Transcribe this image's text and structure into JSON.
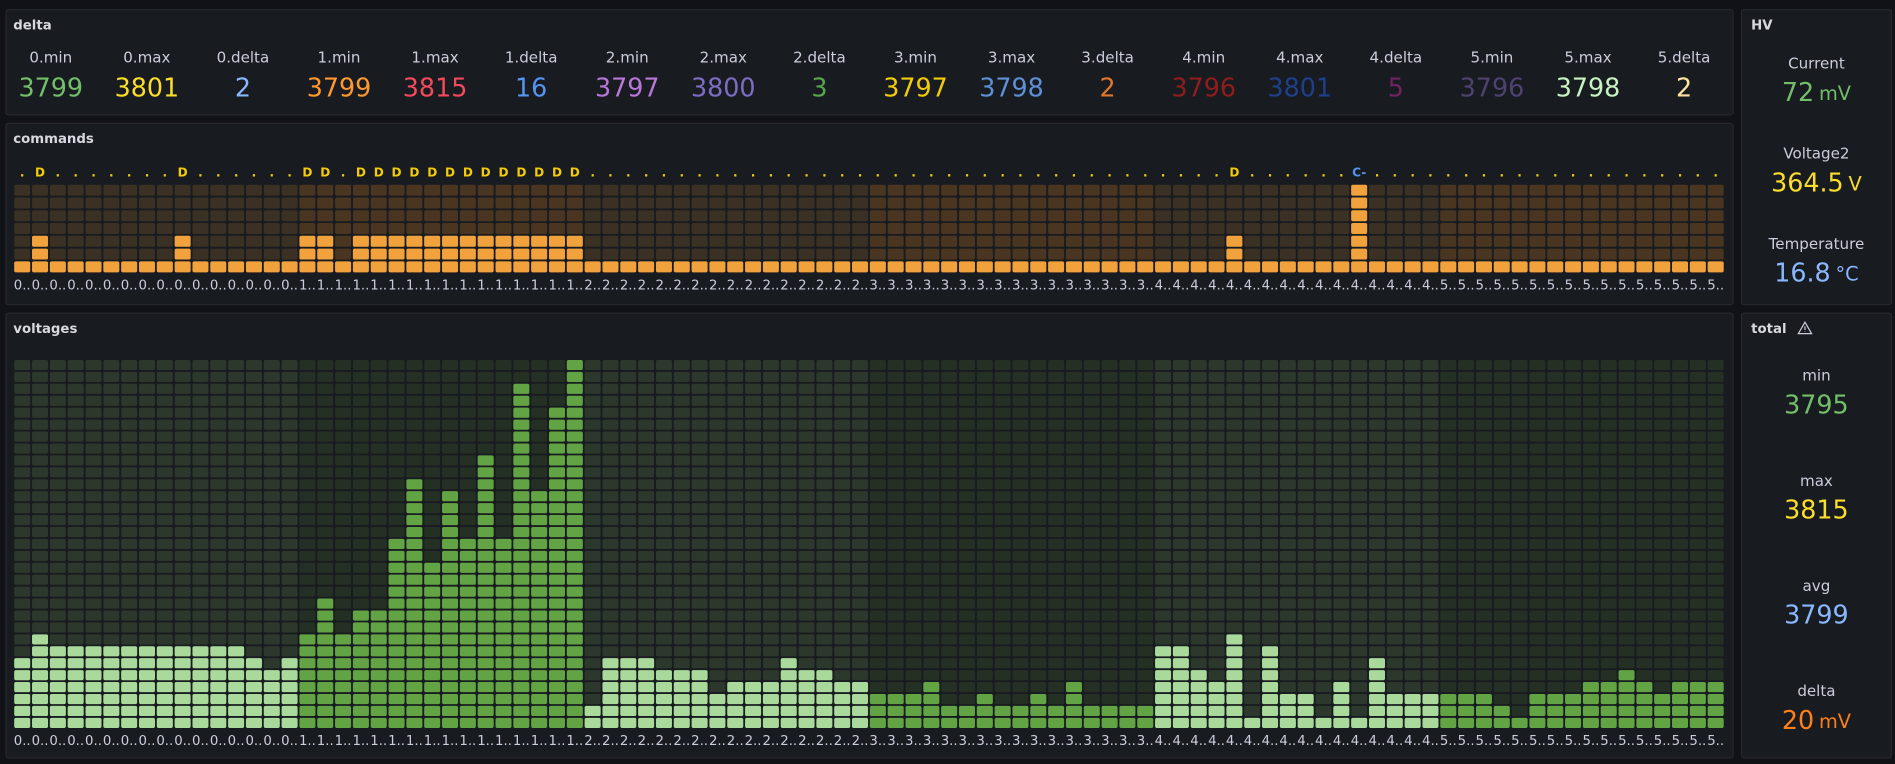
{
  "delta_panel": {
    "title": "delta",
    "stats": [
      {
        "label": "0.min",
        "value": 3799,
        "color": "#73bf69"
      },
      {
        "label": "0.max",
        "value": 3801,
        "color": "#fade2a"
      },
      {
        "label": "0.delta",
        "value": 2,
        "color": "#8ab8ff"
      },
      {
        "label": "1.min",
        "value": 3799,
        "color": "#ff9830"
      },
      {
        "label": "1.max",
        "value": 3815,
        "color": "#f2495c"
      },
      {
        "label": "1.delta",
        "value": 16,
        "color": "#5794f2"
      },
      {
        "label": "2.min",
        "value": 3797,
        "color": "#b877d9"
      },
      {
        "label": "2.max",
        "value": 3800,
        "color": "#7d6cc4"
      },
      {
        "label": "2.delta",
        "value": 3,
        "color": "#56a64b"
      },
      {
        "label": "3.min",
        "value": 3797,
        "color": "#f2cc0c"
      },
      {
        "label": "3.max",
        "value": 3798,
        "color": "#5f8fd6"
      },
      {
        "label": "3.delta",
        "value": 2,
        "color": "#e0752d"
      },
      {
        "label": "4.min",
        "value": 3796,
        "color": "#8f1d1d"
      },
      {
        "label": "4.max",
        "value": 3801,
        "color": "#1f3f8c"
      },
      {
        "label": "4.delta",
        "value": 5,
        "color": "#6e2363"
      },
      {
        "label": "5.min",
        "value": 3796,
        "color": "#4e4272"
      },
      {
        "label": "5.max",
        "value": 3798,
        "color": "#c8f2c2"
      },
      {
        "label": "5.delta",
        "value": 2,
        "color": "#ffe3a0"
      }
    ]
  },
  "hv_panel": {
    "title": "HV",
    "stats": [
      {
        "label": "Current",
        "value": 72,
        "unit": "mV",
        "color": "#73bf69"
      },
      {
        "label": "Voltage2",
        "value": 364.5,
        "unit": "V",
        "color": "#fade2a"
      },
      {
        "label": "Temperature",
        "value": 16.8,
        "unit": "°C",
        "color": "#8ab8ff"
      }
    ]
  },
  "total_panel": {
    "title": "total",
    "stats": [
      {
        "label": "min",
        "value": 3795,
        "color": "#73bf69"
      },
      {
        "label": "max",
        "value": 3815,
        "color": "#fade2a"
      },
      {
        "label": "avg",
        "value": 3799,
        "color": "#8ab8ff"
      },
      {
        "label": "delta",
        "value": 20,
        "unit": "mV",
        "color": "#ff7f1a"
      }
    ]
  },
  "chart_data": [
    {
      "type": "cellbar",
      "title": "commands",
      "ylim": [
        0,
        7
      ],
      "colors": [
        "#f2a23c",
        "#f2a23c"
      ],
      "label_color": "#f2cc0c",
      "top_label_color": "#5794f2",
      "categories": [
        "0..",
        "0..",
        "0..",
        "0..",
        "0..",
        "0..",
        "0..",
        "0..",
        "0..",
        "0..",
        "0..",
        "0..",
        "0..",
        "0..",
        "0..",
        "0..",
        "1..",
        "1..",
        "1..",
        "1..",
        "1..",
        "1..",
        "1..",
        "1..",
        "1..",
        "1..",
        "1..",
        "1..",
        "1..",
        "1..",
        "1..",
        "1..",
        "2..",
        "2..",
        "2..",
        "2..",
        "2..",
        "2..",
        "2..",
        "2..",
        "2..",
        "2..",
        "2..",
        "2..",
        "2..",
        "2..",
        "2..",
        "2..",
        "3..",
        "3..",
        "3..",
        "3..",
        "3..",
        "3..",
        "3..",
        "3..",
        "3..",
        "3..",
        "3..",
        "3..",
        "3..",
        "3..",
        "3..",
        "3..",
        "4..",
        "4..",
        "4..",
        "4..",
        "4..",
        "4..",
        "4..",
        "4..",
        "4..",
        "4..",
        "4..",
        "4..",
        "4..",
        "4..",
        "4..",
        "4..",
        "5..",
        "5..",
        "5..",
        "5..",
        "5..",
        "5..",
        "5..",
        "5..",
        "5..",
        "5..",
        "5..",
        "5..",
        "5..",
        "5..",
        "5..",
        "5.."
      ],
      "values": [
        1,
        3,
        1,
        1,
        1,
        1,
        1,
        1,
        1,
        3,
        1,
        1,
        1,
        1,
        1,
        1,
        3,
        3,
        1,
        3,
        3,
        3,
        3,
        3,
        3,
        3,
        3,
        3,
        3,
        3,
        3,
        3,
        1,
        1,
        1,
        1,
        1,
        1,
        1,
        1,
        1,
        1,
        1,
        1,
        1,
        1,
        1,
        1,
        1,
        1,
        1,
        1,
        1,
        1,
        1,
        1,
        1,
        1,
        1,
        1,
        1,
        1,
        1,
        1,
        1,
        1,
        1,
        1,
        3,
        1,
        1,
        1,
        1,
        1,
        1,
        7,
        1,
        1,
        1,
        1,
        1,
        1,
        1,
        1,
        1,
        1,
        1,
        1,
        1,
        1,
        1,
        1,
        1,
        1,
        1,
        1
      ],
      "value_labels": [
        ".",
        "D",
        ".",
        ".",
        ".",
        ".",
        ".",
        ".",
        ".",
        "D",
        ".",
        ".",
        ".",
        ".",
        ".",
        ".",
        "D",
        "D",
        ".",
        "D",
        "D",
        "D",
        "D",
        "D",
        "D",
        "D",
        "D",
        "D",
        "D",
        "D",
        "D",
        "D",
        ".",
        ".",
        ".",
        ".",
        ".",
        ".",
        ".",
        ".",
        ".",
        ".",
        ".",
        ".",
        ".",
        ".",
        ".",
        ".",
        ".",
        ".",
        ".",
        ".",
        ".",
        ".",
        ".",
        ".",
        ".",
        ".",
        ".",
        ".",
        ".",
        ".",
        ".",
        ".",
        ".",
        ".",
        ".",
        ".",
        "D",
        ".",
        ".",
        ".",
        ".",
        ".",
        ".",
        "C-",
        ".",
        ".",
        ".",
        ".",
        ".",
        ".",
        ".",
        ".",
        ".",
        ".",
        ".",
        ".",
        ".",
        ".",
        ".",
        ".",
        ".",
        ".",
        ".",
        "."
      ]
    },
    {
      "type": "cellbar",
      "title": "voltages",
      "ylim": [
        0,
        31
      ],
      "colors": [
        "#a9d99b",
        "#62a444"
      ],
      "categories": [
        "0..",
        "0..",
        "0..",
        "0..",
        "0..",
        "0..",
        "0..",
        "0..",
        "0..",
        "0..",
        "0..",
        "0..",
        "0..",
        "0..",
        "0..",
        "0..",
        "1..",
        "1..",
        "1..",
        "1..",
        "1..",
        "1..",
        "1..",
        "1..",
        "1..",
        "1..",
        "1..",
        "1..",
        "1..",
        "1..",
        "1..",
        "1..",
        "2..",
        "2..",
        "2..",
        "2..",
        "2..",
        "2..",
        "2..",
        "2..",
        "2..",
        "2..",
        "2..",
        "2..",
        "2..",
        "2..",
        "2..",
        "2..",
        "3..",
        "3..",
        "3..",
        "3..",
        "3..",
        "3..",
        "3..",
        "3..",
        "3..",
        "3..",
        "3..",
        "3..",
        "3..",
        "3..",
        "3..",
        "3..",
        "4..",
        "4..",
        "4..",
        "4..",
        "4..",
        "4..",
        "4..",
        "4..",
        "4..",
        "4..",
        "4..",
        "4..",
        "4..",
        "4..",
        "4..",
        "4..",
        "5..",
        "5..",
        "5..",
        "5..",
        "5..",
        "5..",
        "5..",
        "5..",
        "5..",
        "5..",
        "5..",
        "5..",
        "5..",
        "5..",
        "5..",
        "5.."
      ],
      "values": [
        6,
        8,
        7,
        7,
        7,
        7,
        7,
        7,
        7,
        7,
        7,
        7,
        7,
        6,
        5,
        6,
        8,
        11,
        8,
        10,
        10,
        16,
        21,
        14,
        20,
        16,
        23,
        16,
        29,
        20,
        27,
        31,
        2,
        6,
        6,
        6,
        5,
        5,
        5,
        3,
        4,
        4,
        4,
        6,
        5,
        5,
        4,
        4,
        3,
        3,
        3,
        4,
        2,
        2,
        3,
        2,
        2,
        3,
        2,
        4,
        2,
        2,
        2,
        2,
        7,
        7,
        5,
        4,
        8,
        1,
        7,
        3,
        3,
        1,
        4,
        1,
        6,
        3,
        3,
        3,
        3,
        3,
        3,
        2,
        1,
        3,
        3,
        3,
        4,
        4,
        5,
        4,
        3,
        4,
        4,
        4
      ]
    }
  ]
}
